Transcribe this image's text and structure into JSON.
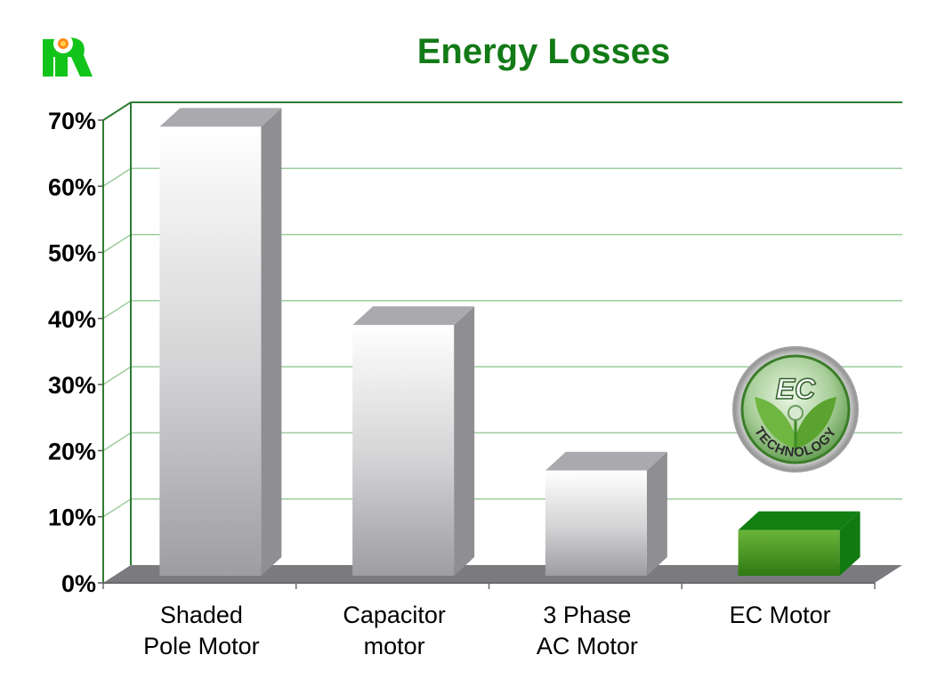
{
  "chart_data": {
    "type": "bar",
    "title": "Energy Losses",
    "xlabel": "",
    "ylabel": "",
    "categories": [
      [
        "Shaded",
        "Pole Motor"
      ],
      [
        "Capacitor",
        "motor"
      ],
      [
        "3 Phase",
        "AC Motor"
      ],
      [
        "EC Motor"
      ]
    ],
    "values": [
      69,
      39,
      17,
      8
    ],
    "ylim": [
      0,
      70
    ],
    "yticks": [
      "0%",
      "10%",
      "20%",
      "30%",
      "40%",
      "50%",
      "60%",
      "70%"
    ],
    "grid": true,
    "legend": "none",
    "bar_colors": [
      "#c9c9cc",
      "#c9c9cc",
      "#c9c9cc",
      "#3e8e1c"
    ],
    "grid_color": "#9ccc9c",
    "axis_color": "#2e7d32",
    "title_color": "#127a16"
  },
  "badge": {
    "top_text": "EC",
    "bottom_text": "TECHNOLOGY"
  },
  "logo": {
    "icon": "company-logo-icon"
  }
}
